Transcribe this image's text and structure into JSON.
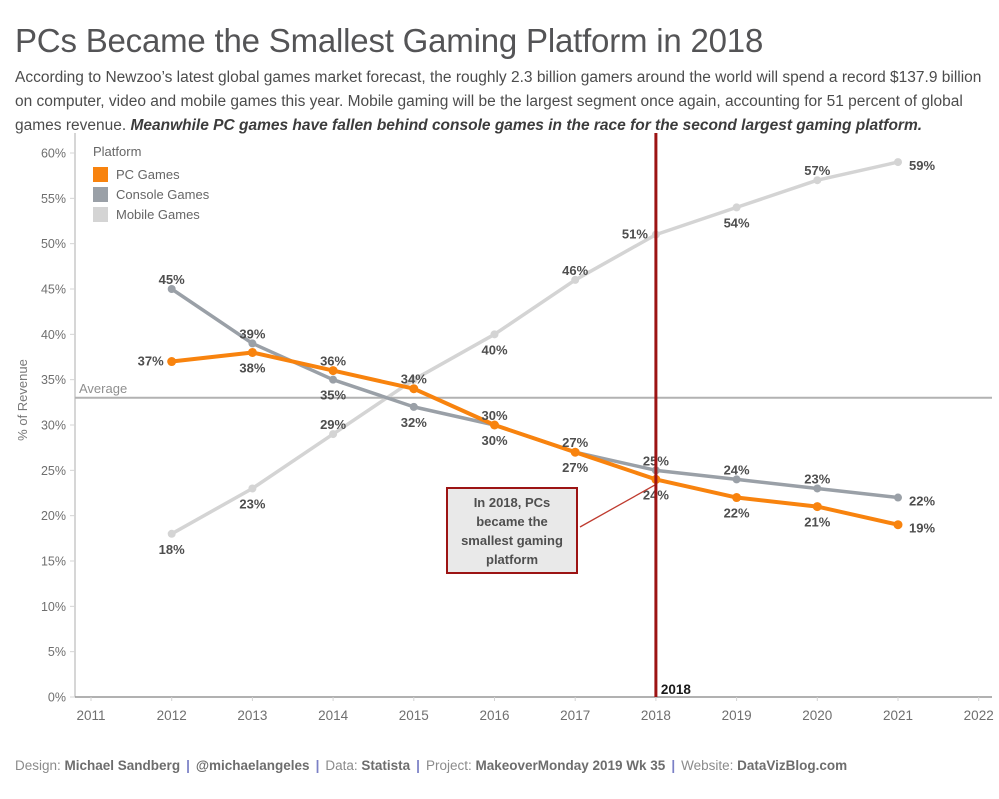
{
  "chart_data": {
    "type": "line",
    "title": "PCs Became the Smallest Gaming Platform in 2018",
    "subtitle": "According to Newzoo’s latest global games market forecast, the roughly 2.3 billion gamers around the world will spend a record $137.9 billion on computer, video and mobile games this year. Mobile gaming will be the largest segment once again, accounting for 51 percent of global games revenue. ",
    "subtitle_emphasis": "Meanwhile PC games have fallen behind console games in the race for the second largest gaming platform.",
    "ylabel": "% of Revenue",
    "ylim": [
      0,
      60
    ],
    "ytick_step": 5,
    "yticks": [
      "0%",
      "5%",
      "10%",
      "15%",
      "20%",
      "25%",
      "30%",
      "35%",
      "40%",
      "45%",
      "50%",
      "55%",
      "60%"
    ],
    "xlim": [
      2011,
      2022
    ],
    "xticks": [
      2011,
      2012,
      2013,
      2014,
      2015,
      2016,
      2017,
      2018,
      2019,
      2020,
      2021,
      2022
    ],
    "x": [
      2012,
      2013,
      2014,
      2015,
      2016,
      2017,
      2018,
      2019,
      2020,
      2021
    ],
    "grid": "off",
    "legend": {
      "title": "Platform",
      "position": "top-left"
    },
    "series": [
      {
        "name": "PC Games",
        "color": "#f8830e",
        "values": [
          37,
          38,
          36,
          34,
          30,
          27,
          24,
          22,
          21,
          19
        ],
        "label_positions": [
          "left",
          "below",
          "above",
          "above",
          "below",
          "below",
          "below",
          "below",
          "below",
          "right"
        ]
      },
      {
        "name": "Console Games",
        "color": "#9aa0a7",
        "values": [
          45,
          39,
          35,
          32,
          30,
          27,
          25,
          24,
          23,
          22
        ],
        "label_positions": [
          "above",
          "above",
          "below",
          "below",
          "above",
          "above",
          "above",
          "above",
          "above",
          "right"
        ]
      },
      {
        "name": "Mobile Games",
        "color": "#d4d4d4",
        "values": [
          18,
          23,
          29,
          35,
          40,
          46,
          51,
          54,
          57,
          59
        ],
        "label_positions": [
          "below",
          "below",
          "above",
          "none",
          "below",
          "above",
          "left",
          "below",
          "above",
          "right"
        ]
      }
    ],
    "average_line": {
      "label": "Average",
      "value": 33
    },
    "reference_line": {
      "year": 2018,
      "label": "2018",
      "color": "#9c1414"
    },
    "annotation": {
      "text": "In 2018, PCs became the smallest gaming platform",
      "border_color": "#9c1414",
      "background": "#e9e9e9"
    }
  },
  "footer": {
    "separator": "|",
    "separator_color": "#7b80c6",
    "segments": [
      {
        "label": "Design:",
        "value": "Michael Sandberg"
      },
      {
        "label": "",
        "value": "@michaelangeles"
      },
      {
        "label": "Data:",
        "value": "Statista"
      },
      {
        "label": "Project:",
        "value": "MakeoverMonday 2019 Wk 35"
      },
      {
        "label": "Website:",
        "value": "DataVizBlog.com"
      }
    ]
  }
}
